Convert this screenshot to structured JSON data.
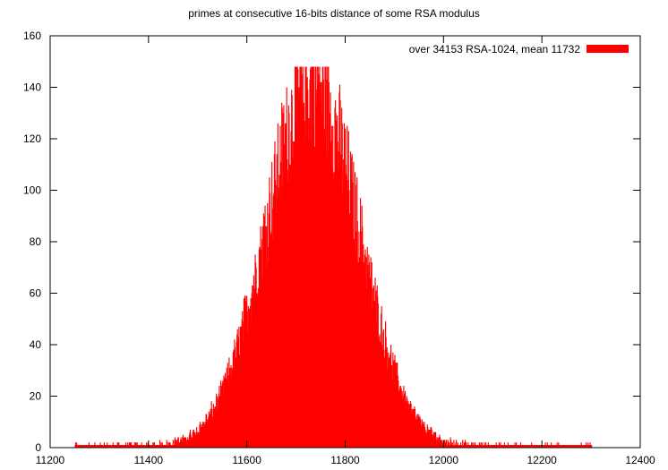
{
  "chart_data": {
    "type": "bar",
    "title": "primes at consecutive 16-bits distance of some RSA modulus",
    "xlabel": "",
    "ylabel": "",
    "xlim": [
      11200,
      12400
    ],
    "ylim": [
      0,
      160
    ],
    "xticks": [
      11200,
      11400,
      11600,
      11800,
      12000,
      12200,
      12400
    ],
    "yticks": [
      0,
      20,
      40,
      60,
      80,
      100,
      120,
      140,
      160
    ],
    "grid": false,
    "legend_position": "top-right",
    "bin_width": 1,
    "series": [
      {
        "name": "over 34153 RSA-1024, mean 11732",
        "color": "#ff0000",
        "distribution": {
          "shape": "approximately normal",
          "mean": 11732,
          "std_dev": 95,
          "peak": 148,
          "peak_x": 11732,
          "min_x": 11250,
          "max_x": 12300
        }
      }
    ]
  }
}
